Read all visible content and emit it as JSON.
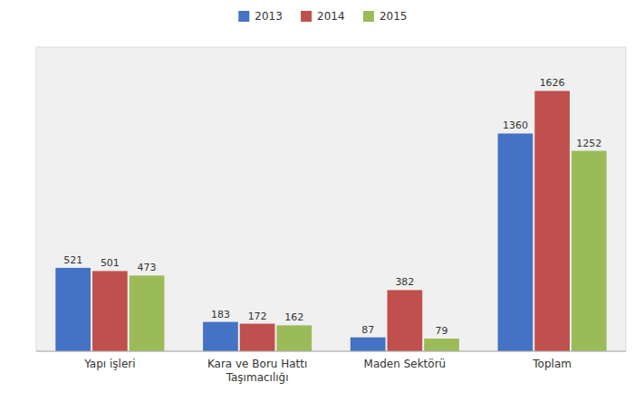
{
  "chart_data": {
    "type": "bar",
    "categories": [
      "Yapı işleri",
      "Kara ve Boru Hattı\nTaşımacılığı",
      "Maden Sektörü",
      "Toplam"
    ],
    "series": [
      {
        "name": "2013",
        "color": "#4472C4",
        "values": [
          521,
          183,
          87,
          1360
        ]
      },
      {
        "name": "2014",
        "color": "#C0504D",
        "values": [
          501,
          172,
          382,
          1626
        ]
      },
      {
        "name": "2015",
        "color": "#9BBB59",
        "values": [
          473,
          162,
          79,
          1252
        ]
      }
    ],
    "ylim": [
      0,
      1900
    ],
    "yticks": [],
    "grid": false,
    "legend": "top",
    "data_labels": true,
    "tick_labels": "x"
  }
}
